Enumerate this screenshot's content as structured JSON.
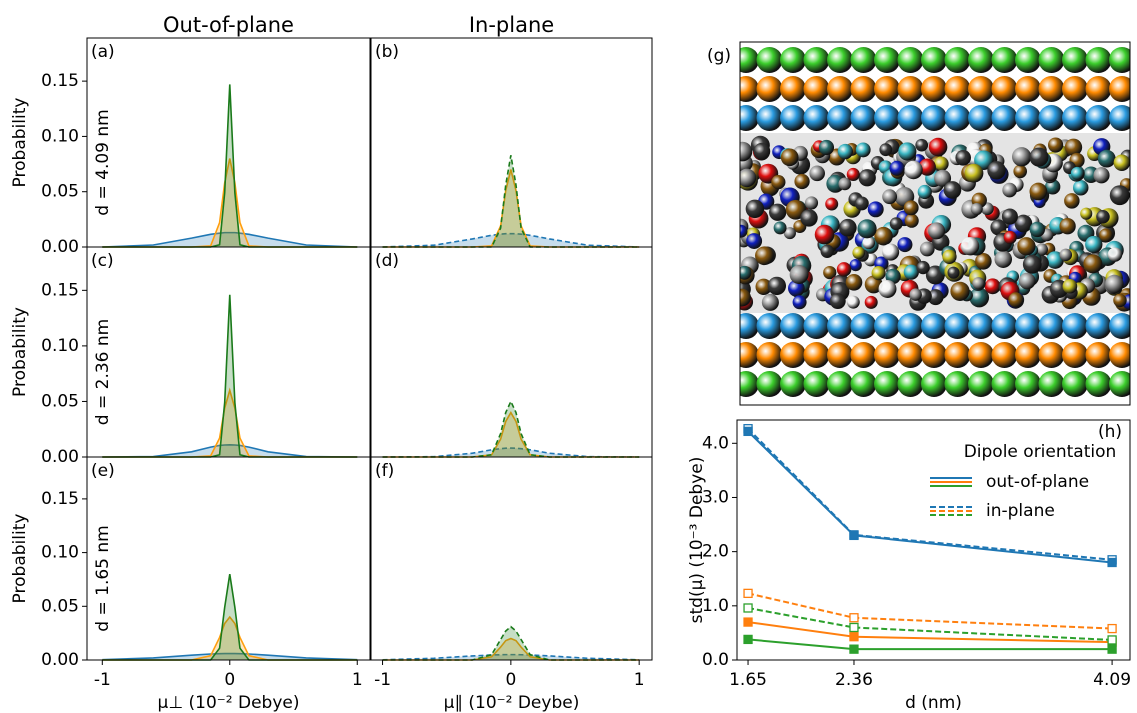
{
  "image_panel": {
    "label": "(g)"
  },
  "chart_data": [
    {
      "type": "density",
      "panel_label": "(a)",
      "column_title": "Out-of-plane",
      "row_label": "d = 4.09 nm",
      "ylabel": "Probability",
      "x": [
        -1,
        -0.6,
        -0.3,
        -0.15,
        -0.08,
        -0.04,
        0,
        0.04,
        0.08,
        0.15,
        0.3,
        0.6,
        1
      ],
      "xlim": [
        -1.12,
        1.1
      ],
      "ylim": [
        0,
        0.189
      ],
      "yticks": [
        {
          "value": 0,
          "label": "0.00"
        },
        {
          "value": 0.05,
          "label": "0.05"
        },
        {
          "value": 0.1,
          "label": "0.10"
        },
        {
          "value": 0.15,
          "label": "0.15"
        }
      ],
      "series": [
        {
          "color": "#1f77b4",
          "style": "solid",
          "values": [
            0,
            0.0018,
            0.008,
            0.0115,
            0.0125,
            0.013,
            0.013,
            0.013,
            0.0125,
            0.0115,
            0.008,
            0.0018,
            0
          ]
        },
        {
          "color": "#ff9f0e",
          "style": "solid",
          "values": [
            0,
            0,
            0,
            0.001,
            0.022,
            0.058,
            0.08,
            0.058,
            0.022,
            0.001,
            0,
            0,
            0
          ]
        },
        {
          "color": "#1a7a1a",
          "style": "solid",
          "values": [
            0,
            0,
            0,
            0,
            0.002,
            0.049,
            0.147,
            0.049,
            0.002,
            0,
            0,
            0,
            0
          ]
        }
      ]
    },
    {
      "type": "density",
      "panel_label": "(b)",
      "column_title": "In-plane",
      "x": [
        -1,
        -0.6,
        -0.3,
        -0.15,
        -0.08,
        -0.04,
        0,
        0.04,
        0.08,
        0.15,
        0.3,
        0.6,
        1
      ],
      "xlim": [
        -1.09,
        1.1
      ],
      "ylim": [
        0,
        0.189
      ],
      "series": [
        {
          "color": "#1f77b4",
          "style": "dashed",
          "values": [
            0,
            0.0016,
            0.0073,
            0.0106,
            0.0116,
            0.012,
            0.012,
            0.012,
            0.0116,
            0.0106,
            0.0073,
            0.0016,
            0
          ]
        },
        {
          "color": "#ff9f0e",
          "style": "solid",
          "values": [
            0,
            0,
            0,
            0.001,
            0.019,
            0.051,
            0.07,
            0.051,
            0.019,
            0.001,
            0,
            0,
            0
          ]
        },
        {
          "color": "#1a7a1a",
          "style": "dashed",
          "values": [
            0,
            0,
            0,
            0,
            0.017,
            0.056,
            0.083,
            0.056,
            0.017,
            0,
            0,
            0,
            0
          ]
        }
      ]
    },
    {
      "type": "density",
      "panel_label": "(c)",
      "row_label": "d = 2.36 nm",
      "ylabel": "Probability",
      "x": [
        -1,
        -0.6,
        -0.3,
        -0.15,
        -0.08,
        -0.04,
        0,
        0.04,
        0.08,
        0.15,
        0.3,
        0.6,
        1
      ],
      "xlim": [
        -1.12,
        1.1
      ],
      "ylim": [
        0,
        0.189
      ],
      "yticks": [
        {
          "value": 0,
          "label": "0.00"
        },
        {
          "value": 0.05,
          "label": "0.05"
        },
        {
          "value": 0.1,
          "label": "0.10"
        },
        {
          "value": 0.15,
          "label": "0.15"
        }
      ],
      "series": [
        {
          "color": "#1f77b4",
          "style": "solid",
          "values": [
            0,
            0.0004,
            0.0047,
            0.0089,
            0.0104,
            0.0108,
            0.011,
            0.0108,
            0.0104,
            0.0089,
            0.0047,
            0.0004,
            0
          ]
        },
        {
          "color": "#ff9f0e",
          "style": "solid",
          "values": [
            0,
            0,
            0,
            0.001,
            0.017,
            0.044,
            0.06,
            0.044,
            0.017,
            0.001,
            0,
            0,
            0
          ]
        },
        {
          "color": "#1a7a1a",
          "style": "solid",
          "values": [
            0,
            0,
            0,
            0,
            0.002,
            0.049,
            0.146,
            0.049,
            0.002,
            0,
            0,
            0,
            0
          ]
        }
      ]
    },
    {
      "type": "density",
      "panel_label": "(d)",
      "x": [
        -1,
        -0.6,
        -0.3,
        -0.15,
        -0.08,
        -0.04,
        0,
        0.04,
        0.08,
        0.15,
        0.3,
        0.6,
        1
      ],
      "xlim": [
        -1.09,
        1.1
      ],
      "ylim": [
        0,
        0.189
      ],
      "series": [
        {
          "color": "#1f77b4",
          "style": "dashed",
          "values": [
            0,
            0.0003,
            0.0034,
            0.0065,
            0.0075,
            0.0079,
            0.008,
            0.0079,
            0.0075,
            0.0065,
            0.0034,
            0.0003,
            0
          ]
        },
        {
          "color": "#ff9f0e",
          "style": "solid",
          "values": [
            0,
            0,
            0,
            0.002,
            0.016,
            0.032,
            0.04,
            0.032,
            0.016,
            0.002,
            0,
            0,
            0
          ]
        },
        {
          "color": "#1a7a1a",
          "style": "dashed",
          "values": [
            0,
            0,
            0,
            0.002,
            0.021,
            0.04,
            0.05,
            0.04,
            0.021,
            0.002,
            0,
            0,
            0
          ]
        }
      ]
    },
    {
      "type": "density",
      "panel_label": "(e)",
      "row_label": "d = 1.65 nm",
      "ylabel": "Probability",
      "xlabel": "μ⊥ (10⁻² Debye)",
      "x": [
        -1,
        -0.6,
        -0.3,
        -0.15,
        -0.08,
        -0.04,
        0,
        0.04,
        0.08,
        0.15,
        0.3,
        0.6,
        1
      ],
      "xlim": [
        -1.12,
        1.1
      ],
      "ylim": [
        0,
        0.189
      ],
      "xticks": [
        {
          "value": -1,
          "label": "-1"
        },
        0,
        1
      ],
      "yticks": [
        {
          "value": 0,
          "label": "0.00"
        },
        {
          "value": 0.05,
          "label": "0.05"
        },
        {
          "value": 0.1,
          "label": "0.10"
        },
        {
          "value": 0.15,
          "label": "0.15"
        }
      ],
      "series": [
        {
          "color": "#1f77b4",
          "style": "solid",
          "values": [
            0.0003,
            0.0019,
            0.0045,
            0.0056,
            0.0059,
            0.006,
            0.006,
            0.006,
            0.0059,
            0.0056,
            0.0045,
            0.0019,
            0.0003
          ]
        },
        {
          "color": "#ff9f0e",
          "style": "solid",
          "values": [
            0,
            0,
            0,
            0.004,
            0.021,
            0.034,
            0.04,
            0.034,
            0.021,
            0.004,
            0,
            0,
            0
          ]
        },
        {
          "color": "#1a7a1a",
          "style": "solid",
          "values": [
            0,
            0,
            0,
            0,
            0.011,
            0.049,
            0.08,
            0.049,
            0.011,
            0,
            0,
            0,
            0
          ]
        }
      ]
    },
    {
      "type": "density",
      "panel_label": "(f)",
      "xlabel": "μ∥ (10⁻² Deybe)",
      "x": [
        -1,
        -0.6,
        -0.3,
        -0.15,
        -0.08,
        -0.04,
        0,
        0.04,
        0.08,
        0.15,
        0.3,
        0.6,
        1
      ],
      "xlim": [
        -1.09,
        1.1
      ],
      "ylim": [
        0,
        0.189
      ],
      "xticks": [
        {
          "value": -1,
          "label": "-1"
        },
        0,
        1
      ],
      "series": [
        {
          "color": "#1f77b4",
          "style": "dashed",
          "values": [
            0.0002,
            0.0016,
            0.0038,
            0.0047,
            0.0049,
            0.005,
            0.005,
            0.005,
            0.0049,
            0.0047,
            0.0038,
            0.0016,
            0.0002
          ]
        },
        {
          "color": "#ff9f0e",
          "style": "solid",
          "values": [
            0,
            0,
            0,
            0.003,
            0.012,
            0.018,
            0.02,
            0.018,
            0.012,
            0.003,
            0,
            0,
            0
          ]
        },
        {
          "color": "#1a7a1a",
          "style": "dashed",
          "values": [
            0,
            0,
            0,
            0.005,
            0.019,
            0.027,
            0.031,
            0.027,
            0.019,
            0.005,
            0,
            0,
            0
          ]
        }
      ]
    },
    {
      "type": "line",
      "panel_label": "(h)",
      "xlabel": "d (nm)",
      "ylabel": "std(μ) (10⁻³ Debye)",
      "x": [
        1.65,
        2.36,
        4.09
      ],
      "xlim": [
        1.576,
        4.21
      ],
      "ylim": [
        0,
        4.43
      ],
      "xticks": [
        1.65,
        2.36,
        4.09
      ],
      "yticks": [
        {
          "value": 0,
          "label": "0.0"
        },
        {
          "value": 1,
          "label": "1.0"
        },
        {
          "value": 2,
          "label": "2.0"
        },
        {
          "value": 3,
          "label": "3.0"
        },
        {
          "value": 4,
          "label": "4.0"
        }
      ],
      "legend": {
        "title": "Dipole orientation",
        "entries": [
          {
            "label": "out-of-plane",
            "style": "solid"
          },
          {
            "label": "in-plane",
            "style": "dashed"
          }
        ]
      },
      "series": [
        {
          "color": "#1f77b4",
          "style": "dashed",
          "values": [
            4.27,
            2.31,
            1.85
          ]
        },
        {
          "color": "#1f77b4",
          "style": "solid",
          "values": [
            4.22,
            2.3,
            1.8
          ]
        },
        {
          "color": "#ff7f0e",
          "style": "dashed",
          "values": [
            1.23,
            0.78,
            0.58
          ]
        },
        {
          "color": "#ff7f0e",
          "style": "solid",
          "values": [
            0.7,
            0.43,
            0.33
          ]
        },
        {
          "color": "#2ca02c",
          "style": "dashed",
          "values": [
            0.96,
            0.6,
            0.37
          ]
        },
        {
          "color": "#2ca02c",
          "style": "solid",
          "values": [
            0.38,
            0.2,
            0.2
          ]
        }
      ]
    }
  ]
}
